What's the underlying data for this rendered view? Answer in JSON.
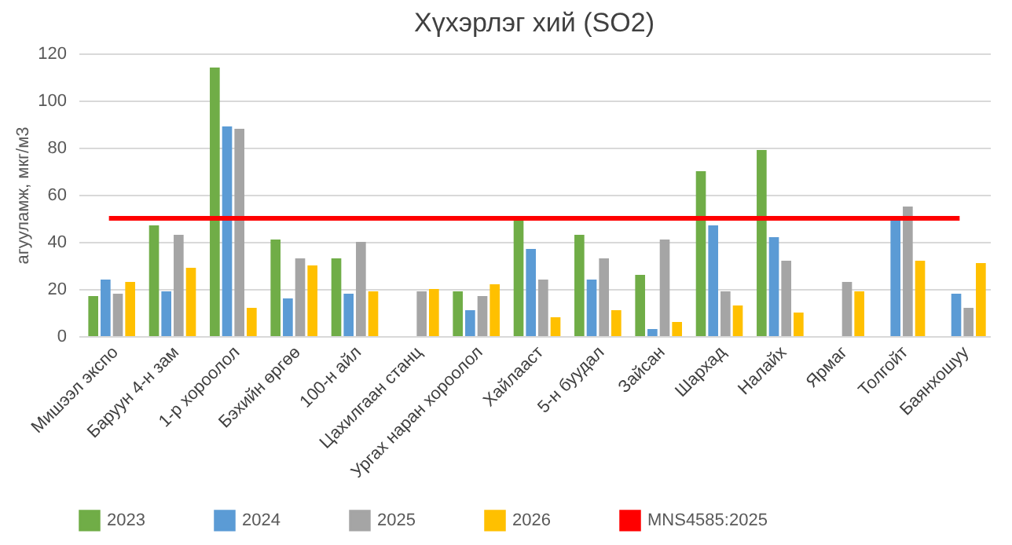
{
  "chart_data": {
    "type": "bar",
    "title": "Хүхэрлэг хий (SO2)",
    "ylabel": "агууламж, мкг/м3",
    "categories": [
      "Мишээл экспо",
      "Баруун 4-н зам",
      "1-р хороолол",
      "Бэхийн өргөө",
      "100-н айл",
      "Цахилгаан станц",
      "Ургах наран хороолол",
      "Хайлааст",
      "5-н буудал",
      "Зайсан",
      "Шархад",
      "Налайх",
      "Ярмаг",
      "Толгойт",
      "Баянхошуу"
    ],
    "series": [
      {
        "name": "2023",
        "color": "#70ad47",
        "values": [
          17,
          47,
          114,
          41,
          33,
          null,
          19,
          51,
          43,
          26,
          70,
          79,
          null,
          null,
          null
        ]
      },
      {
        "name": "2024",
        "color": "#5b9bd5",
        "values": [
          24,
          19,
          89,
          16,
          18,
          null,
          11,
          37,
          24,
          3,
          47,
          42,
          null,
          49,
          18
        ]
      },
      {
        "name": "2025",
        "color": "#a5a5a5",
        "values": [
          18,
          43,
          88,
          33,
          40,
          19,
          17,
          24,
          33,
          41,
          19,
          32,
          23,
          55,
          12
        ]
      },
      {
        "name": "2026",
        "color": "#ffc000",
        "values": [
          23,
          29,
          12,
          30,
          19,
          20,
          22,
          8,
          11,
          6,
          13,
          10,
          19,
          32,
          31
        ]
      },
      {
        "name": "MNS4585:2025",
        "type": "line",
        "color": "#ff0000",
        "values": [
          50,
          50,
          50,
          50,
          50,
          50,
          50,
          50,
          50,
          50,
          50,
          50,
          50,
          50,
          50
        ]
      }
    ],
    "ylim": [
      0,
      120
    ],
    "yticks": [
      0,
      20,
      40,
      60,
      80,
      100,
      120
    ],
    "grid": "y",
    "legend": "bottom"
  }
}
